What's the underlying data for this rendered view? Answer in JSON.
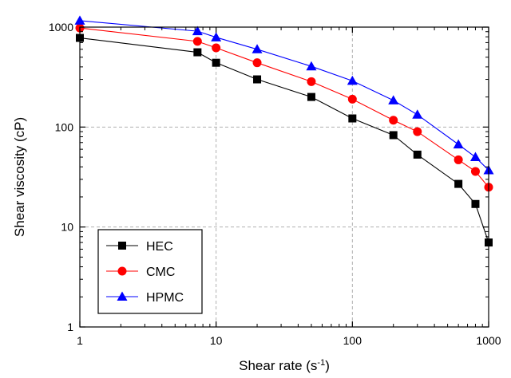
{
  "chart_data": {
    "type": "line",
    "xlabel": "Shear rate (s",
    "xlabel_sup": "-1",
    "xlabel_end": ")",
    "ylabel": "Shear viscosity (cP)",
    "xscale": "log",
    "yscale": "log",
    "xlim": [
      1,
      1000
    ],
    "ylim": [
      1,
      1000
    ],
    "x_ticks": [
      1,
      10,
      100,
      1000
    ],
    "x_tick_labels": [
      "1",
      "10",
      "100",
      "1000"
    ],
    "y_ticks": [
      1,
      10,
      100,
      1000
    ],
    "y_tick_labels": [
      "1",
      "10",
      "100",
      "1000"
    ],
    "grid": true,
    "legend_position": "bottom-left",
    "series": [
      {
        "name": "HEC",
        "marker": "square",
        "color": "#000000",
        "x": [
          1,
          7.3,
          10,
          20,
          50,
          100,
          200,
          300,
          600,
          800,
          1000
        ],
        "y": [
          780,
          560,
          440,
          300,
          200,
          122,
          83,
          53,
          27,
          17,
          7
        ]
      },
      {
        "name": "CMC",
        "marker": "circle",
        "color": "#ff0000",
        "x": [
          1,
          7.3,
          10,
          20,
          50,
          100,
          200,
          300,
          600,
          800,
          1000
        ],
        "y": [
          980,
          720,
          620,
          440,
          285,
          190,
          117,
          90,
          47,
          36,
          25
        ]
      },
      {
        "name": "HPMC",
        "marker": "triangle",
        "color": "#0000ff",
        "x": [
          1,
          7.3,
          10,
          20,
          50,
          100,
          200,
          300,
          600,
          800,
          1000
        ],
        "y": [
          1160,
          910,
          790,
          600,
          405,
          290,
          185,
          133,
          67,
          50,
          37
        ]
      }
    ]
  }
}
